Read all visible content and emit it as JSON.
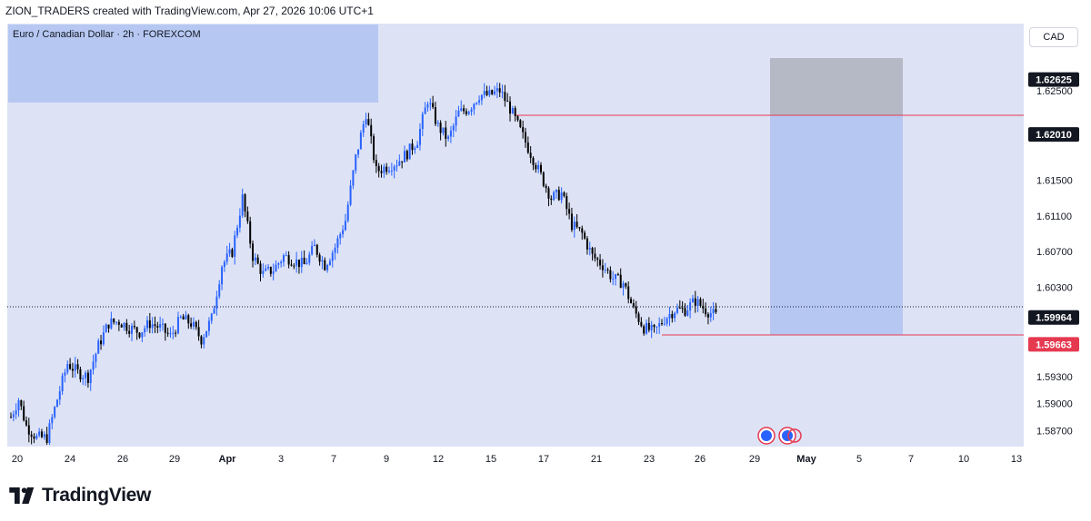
{
  "header": {
    "credit": "ZION_TRADERS created with TradingView.com, Apr 27, 2026 10:06 UTC+1"
  },
  "symbol_label": "Euro / Canadian Dollar · 2h · FOREXCOM",
  "currency_button": "CAD",
  "footer": {
    "brand": "TradingView"
  },
  "colors": {
    "background": "#dde3f5",
    "bull_candle": "#2962ff",
    "bear_candle": "#000000",
    "supply_zone": "#b6c8f2",
    "stop_zone": "#b5b9c6",
    "target_zone": "#b6c8f2",
    "level_line": "#e53950",
    "price_label_dark": "#131722",
    "price_label_red": "#e53950"
  },
  "chart_data": {
    "type": "candlestick",
    "symbol": "EUR/CAD",
    "timeframe": "2h",
    "price_axis": {
      "ticks": [
        1.625,
        1.615,
        1.611,
        1.607,
        1.603,
        1.5993,
        1.593,
        1.59,
        1.587
      ],
      "tick_labels": [
        "1.62500",
        "1.61500",
        "1.61100",
        "1.60700",
        "1.60300",
        "1.59930",
        "1.59300",
        "1.59000",
        "1.58700"
      ],
      "range": [
        1.5852,
        1.6325
      ]
    },
    "time_axis": {
      "labels": [
        "20",
        "24",
        "26",
        "29",
        "Apr",
        "3",
        "7",
        "9",
        "12",
        "15",
        "17",
        "21",
        "23",
        "26",
        "29",
        "May",
        "5",
        "7",
        "10",
        "13"
      ],
      "bold_labels": [
        "Apr",
        "May"
      ]
    },
    "price_labels": [
      {
        "value": 1.62625,
        "text": "1.62625",
        "style": "dark"
      },
      {
        "value": 1.6201,
        "text": "1.62010",
        "style": "dark"
      },
      {
        "value": 1.59964,
        "text": "1.59964",
        "style": "dark"
      },
      {
        "value": 1.59663,
        "text": "1.59663",
        "style": "red"
      }
    ],
    "levels": [
      {
        "name": "resistance",
        "value": 1.6201
      },
      {
        "name": "target",
        "value": 1.59663
      }
    ],
    "current_price": 1.59964,
    "supply_zone": {
      "top": 1.63,
      "bottom": 1.6225,
      "start": "20",
      "end": "8"
    },
    "short_position": {
      "entry": 1.6201,
      "stop": 1.62625,
      "target": 1.59663,
      "start": "30",
      "end": "7"
    },
    "price_path": [
      [
        0,
        1.5885
      ],
      [
        3,
        1.5905
      ],
      [
        6,
        1.5875
      ],
      [
        10,
        1.5862
      ],
      [
        14,
        1.5862
      ],
      [
        18,
        1.5905
      ],
      [
        22,
        1.5945
      ],
      [
        26,
        1.5935
      ],
      [
        30,
        1.593
      ],
      [
        34,
        1.5965
      ],
      [
        38,
        1.599
      ],
      [
        42,
        1.5992
      ],
      [
        46,
        1.5985
      ],
      [
        50,
        1.598
      ],
      [
        54,
        1.599
      ],
      [
        58,
        1.5985
      ],
      [
        62,
        1.5975
      ],
      [
        66,
        1.5995
      ],
      [
        70,
        1.599
      ],
      [
        74,
        1.5972
      ],
      [
        78,
        1.5995
      ],
      [
        82,
        1.6055
      ],
      [
        86,
        1.607
      ],
      [
        90,
        1.613
      ],
      [
        94,
        1.6065
      ],
      [
        98,
        1.6045
      ],
      [
        102,
        1.605
      ],
      [
        106,
        1.6065
      ],
      [
        110,
        1.606
      ],
      [
        114,
        1.6055
      ],
      [
        118,
        1.6075
      ],
      [
        122,
        1.6055
      ],
      [
        126,
        1.6075
      ],
      [
        130,
        1.6105
      ],
      [
        134,
        1.6175
      ],
      [
        138,
        1.6225
      ],
      [
        142,
        1.616
      ],
      [
        146,
        1.6165
      ],
      [
        150,
        1.617
      ],
      [
        154,
        1.618
      ],
      [
        158,
        1.6195
      ],
      [
        162,
        1.624
      ],
      [
        166,
        1.621
      ],
      [
        170,
        1.6195
      ],
      [
        174,
        1.6225
      ],
      [
        178,
        1.623
      ],
      [
        182,
        1.6245
      ],
      [
        186,
        1.6245
      ],
      [
        190,
        1.625
      ],
      [
        194,
        1.623
      ],
      [
        198,
        1.6205
      ],
      [
        202,
        1.618
      ],
      [
        206,
        1.6155
      ],
      [
        210,
        1.613
      ],
      [
        214,
        1.6135
      ],
      [
        218,
        1.61
      ],
      [
        222,
        1.609
      ],
      [
        226,
        1.6065
      ],
      [
        230,
        1.6055
      ],
      [
        234,
        1.604
      ],
      [
        238,
        1.6035
      ],
      [
        242,
        1.6005
      ],
      [
        246,
        1.5985
      ],
      [
        250,
        1.598
      ],
      [
        254,
        1.5995
      ],
      [
        258,
        1.6005
      ],
      [
        262,
        1.6005
      ],
      [
        266,
        1.6015
      ],
      [
        270,
        1.6005
      ],
      [
        274,
        1.5998
      ]
    ]
  }
}
